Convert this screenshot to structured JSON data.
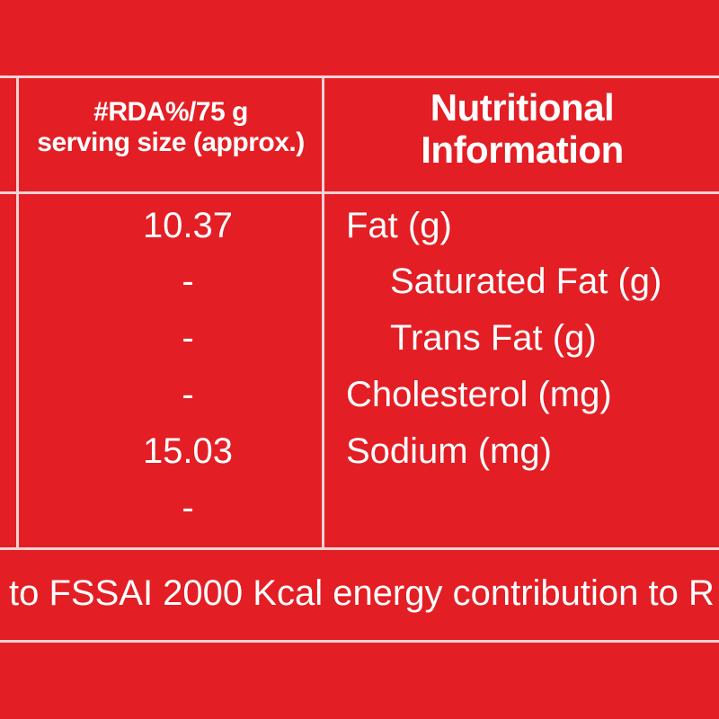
{
  "header": {
    "rda_line1": "#RDA%/75 g",
    "rda_line2": "serving size (approx.)",
    "nutrition_line1": "Nutritional",
    "nutrition_line2": "Information"
  },
  "rows": [
    {
      "rda": "10.37",
      "nutrient": "Fat (g)"
    },
    {
      "rda": "-",
      "nutrient": "Saturated Fat (g)"
    },
    {
      "rda": "-",
      "nutrient": "Trans Fat (g)"
    },
    {
      "rda": "-",
      "nutrient": "Cholesterol (mg)"
    },
    {
      "rda": "15.03",
      "nutrient": "Sodium (mg)"
    },
    {
      "rda": "-",
      "nutrient": ""
    }
  ],
  "footer": {
    "text": "to FSSAI 2000 Kcal energy contribution to R"
  },
  "colors": {
    "background": "#e31e24",
    "text": "#ffffff",
    "rule": "#f3d3d3"
  }
}
